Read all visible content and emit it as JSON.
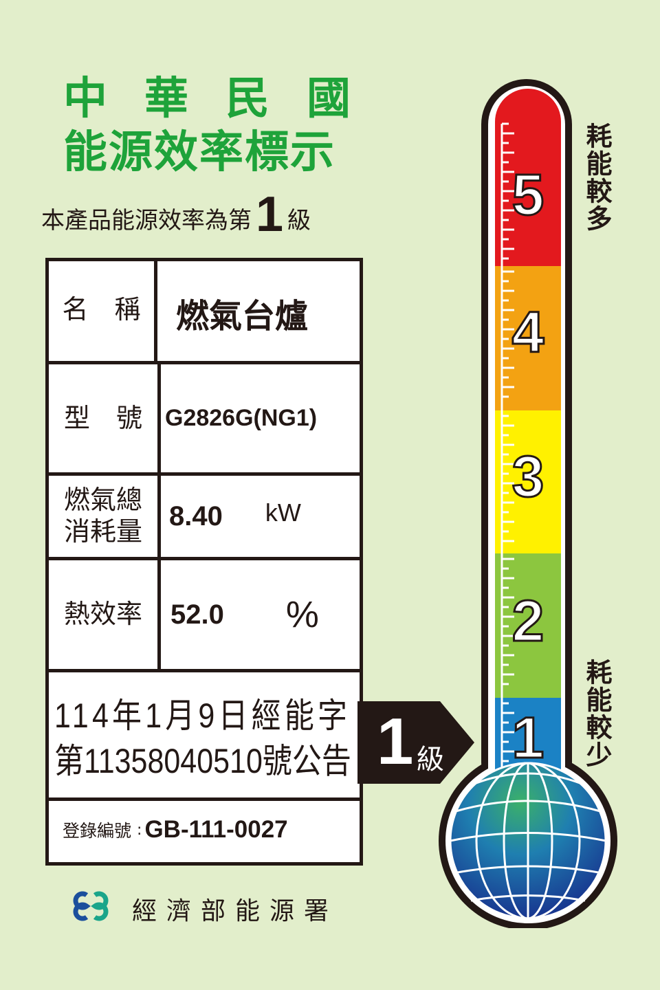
{
  "header": {
    "title_line1": "中華民國",
    "title_line2": "能源效率標示",
    "grade_prefix": "本產品能源效率為第",
    "grade_value": "1",
    "grade_suffix": "級"
  },
  "table": {
    "rows": [
      {
        "label": "名　稱",
        "value": "燃氣台爐"
      },
      {
        "label": "型　號",
        "value": "G2826G(NG1)"
      },
      {
        "label_line1": "燃氣總",
        "label_line2": "消耗量",
        "value": "8.40",
        "unit": "kW"
      },
      {
        "label": "熱效率",
        "value": "52.0",
        "unit": "%"
      }
    ],
    "announcement_line1": "114年1月9日經能字",
    "announcement_line2": "第11358040510號公告",
    "registration_label": "登錄編號",
    "registration_sep": ":",
    "registration_value": "GB-111-0027"
  },
  "footer": {
    "agency": "經濟部能源署",
    "logo_icon": "energy-administration-logo"
  },
  "scale": {
    "top_label": "耗能較多",
    "bottom_label": "耗能較少",
    "current_grade": 1,
    "pointer_value": "1",
    "pointer_suffix": "級",
    "levels": [
      {
        "num": "5",
        "color": "#e3191e"
      },
      {
        "num": "4",
        "color": "#f3a212"
      },
      {
        "num": "3",
        "color": "#fff100"
      },
      {
        "num": "2",
        "color": "#8cc63f"
      },
      {
        "num": "1",
        "color": "#1b82c5"
      }
    ]
  },
  "colors": {
    "background": "#e2eecb",
    "title_green": "#1ea33a"
  }
}
